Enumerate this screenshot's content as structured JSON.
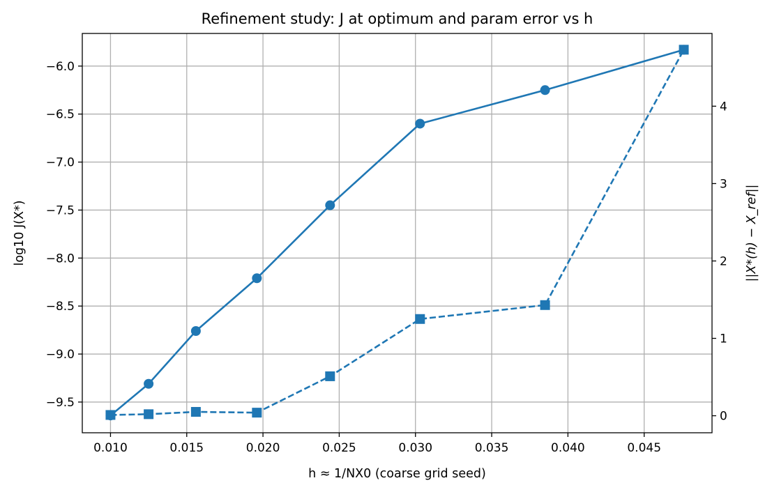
{
  "chart_data": {
    "type": "line",
    "title": "Refinement study: J at optimum and param error vs h",
    "xlabel": "h ≈ 1/NX0 (coarse grid seed)",
    "ylabel_left": "log10 J(X*)",
    "ylabel_right": "||X*(h) − X_ref||",
    "xlim": [
      0.00815,
      0.04945
    ],
    "ylim_left": [
      -9.82,
      -5.66
    ],
    "ylim_right": [
      -0.22,
      4.94
    ],
    "x_ticks": [
      "0.010",
      "0.015",
      "0.020",
      "0.025",
      "0.030",
      "0.035",
      "0.040",
      "0.045"
    ],
    "x_tick_values": [
      0.01,
      0.015,
      0.02,
      0.025,
      0.03,
      0.035,
      0.04,
      0.045
    ],
    "y_left_ticks": [
      "−6.0",
      "−6.5",
      "−7.0",
      "−7.5",
      "−8.0",
      "−8.5",
      "−9.0",
      "−9.5"
    ],
    "y_left_tick_values": [
      -6.0,
      -6.5,
      -7.0,
      -7.5,
      -8.0,
      -8.5,
      -9.0,
      -9.5
    ],
    "y_right_ticks": [
      "0",
      "1",
      "2",
      "3",
      "4"
    ],
    "y_right_tick_values": [
      0,
      1,
      2,
      3,
      4
    ],
    "grid": true,
    "color": "#1f77b4",
    "series": [
      {
        "axis": "left",
        "linestyle": "solid",
        "marker": "circle",
        "x": [
          0.01,
          0.0125,
          0.0156,
          0.0196,
          0.0244,
          0.0303,
          0.0385,
          0.0476
        ],
        "values": [
          -9.64,
          -9.31,
          -8.76,
          -8.21,
          -7.45,
          -6.6,
          -6.25,
          -5.83
        ]
      },
      {
        "axis": "right",
        "linestyle": "dashed",
        "marker": "square",
        "x": [
          0.01,
          0.0125,
          0.0156,
          0.0196,
          0.0244,
          0.0303,
          0.0385,
          0.0476
        ],
        "values": [
          0.01,
          0.02,
          0.05,
          0.04,
          0.51,
          1.25,
          1.43,
          4.73
        ]
      }
    ]
  }
}
